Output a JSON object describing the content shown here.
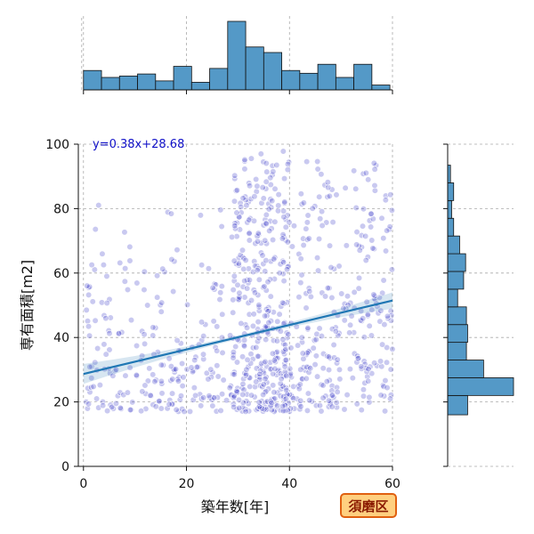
{
  "chart_data": {
    "type": "scatter",
    "xlabel": "築年数[年]",
    "ylabel": "専有面積[m2]",
    "xlim": [
      -1,
      60
    ],
    "ylim": [
      0,
      100
    ],
    "x_ticks": [
      0,
      20,
      40,
      60
    ],
    "y_ticks": [
      0,
      20,
      40,
      60,
      80,
      100
    ],
    "grid": true,
    "regression": {
      "equation": "y=0.38x+28.68",
      "slope": 0.38,
      "intercept": 28.68,
      "color": "#1f77b4"
    },
    "point_color": "#3c3cc8",
    "hist_color": "#5499c7",
    "badge": {
      "label": "須磨区",
      "fill": "#ffd080",
      "border": "#e06010"
    },
    "top_histogram": {
      "bin_edges": [
        0,
        3.5,
        7,
        10.5,
        14,
        17.5,
        21,
        24.5,
        28,
        31.5,
        35,
        38.5,
        42,
        45.5,
        49,
        52.5,
        56,
        59.5
      ],
      "counts": [
        28,
        18,
        20,
        23,
        13,
        34,
        11,
        31,
        99,
        62,
        54,
        28,
        24,
        37,
        18,
        37,
        7
      ]
    },
    "right_histogram": {
      "bin_edges": [
        16,
        22,
        27.5,
        33,
        38.5,
        44,
        49.5,
        55,
        60.5,
        66,
        71.5,
        77,
        82.5,
        88,
        93.5
      ],
      "counts": [
        50,
        165,
        90,
        47,
        50,
        47,
        25,
        40,
        45,
        30,
        15,
        10,
        15,
        7
      ]
    },
    "clusters": [
      {
        "x": [
          0,
          60
        ],
        "y": [
          17,
          30
        ],
        "n": 220
      },
      {
        "x": [
          29,
          40
        ],
        "y": [
          17,
          98
        ],
        "n": 330
      },
      {
        "x": [
          0,
          28
        ],
        "y": [
          30,
          65
        ],
        "n": 80
      },
      {
        "x": [
          40,
          60
        ],
        "y": [
          30,
          95
        ],
        "n": 180
      },
      {
        "x": [
          0,
          60
        ],
        "y": [
          30,
          82
        ],
        "n": 90
      }
    ]
  }
}
